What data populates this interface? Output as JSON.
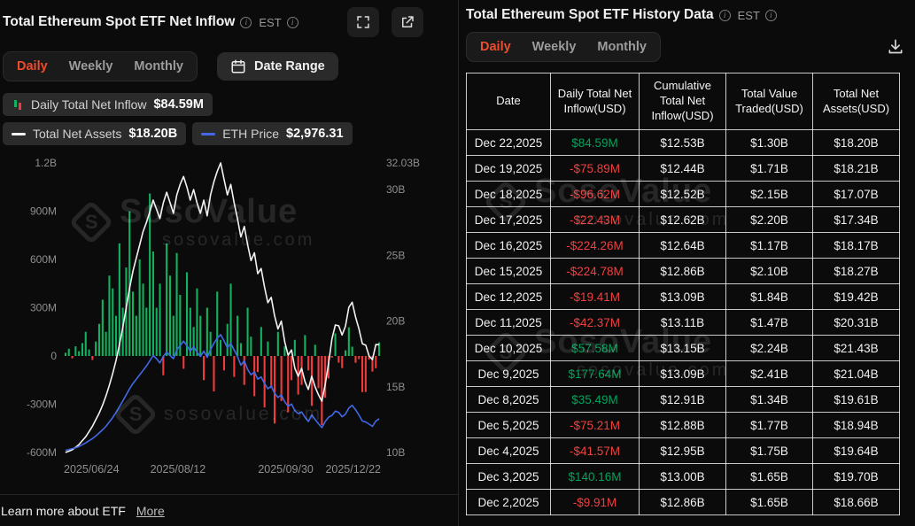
{
  "colors": {
    "accent": "#ee4d2d",
    "bar_green": "#12b15f",
    "bar_red": "#ef3b3b",
    "table_green": "#00a35c",
    "table_red": "#ef4040",
    "eth_line": "#4169e8",
    "assets_line": "#f2f2f2",
    "axis_text": "#8f8f8f"
  },
  "icons": {
    "info": "circled-i",
    "fullscreen": "expand-corners",
    "share": "arrow-out-of-box",
    "calendar": "calendar",
    "download": "arrow-down-to-tray",
    "inflow_legend": "green-red-mini-bars",
    "assets_legend": "white-line",
    "eth_legend": "blue-line"
  },
  "left_panel": {
    "title": "Total Ethereum Spot ETF Net Inflow",
    "est_label": "EST",
    "tabs": [
      {
        "label": "Daily",
        "active": true
      },
      {
        "label": "Weekly",
        "active": false
      },
      {
        "label": "Monthly",
        "active": false
      }
    ],
    "date_range_label": "Date Range",
    "legend": [
      {
        "label": "Daily Total Net Inflow",
        "value": "$84.59M"
      },
      {
        "label": "Total Net Assets",
        "value": "$18.20B"
      },
      {
        "label": "ETH Price",
        "value": "$2,976.31"
      }
    ],
    "footer": {
      "text": "Learn more about ETF",
      "link": "More"
    }
  },
  "right_panel": {
    "title": "Total Ethereum Spot ETF History Data",
    "est_label": "EST",
    "tabs": [
      {
        "label": "Daily",
        "active": true
      },
      {
        "label": "Weekly",
        "active": false
      },
      {
        "label": "Monthly",
        "active": false
      }
    ],
    "table": {
      "headers": [
        "Date",
        "Daily Total Net Inflow(USD)",
        "Cumulative Total Net Inflow(USD)",
        "Total Value Traded(USD)",
        "Total Net Assets(USD)"
      ],
      "rows": [
        [
          "Dec 22,2025",
          "$84.59M",
          "$12.53B",
          "$1.30B",
          "$18.20B"
        ],
        [
          "Dec 19,2025",
          "-$75.89M",
          "$12.44B",
          "$1.71B",
          "$18.21B"
        ],
        [
          "Dec 18,2025",
          "-$96.62M",
          "$12.52B",
          "$2.15B",
          "$17.07B"
        ],
        [
          "Dec 17,2025",
          "-$22.43M",
          "$12.62B",
          "$2.20B",
          "$17.34B"
        ],
        [
          "Dec 16,2025",
          "-$224.26M",
          "$12.64B",
          "$1.17B",
          "$18.17B"
        ],
        [
          "Dec 15,2025",
          "-$224.78M",
          "$12.86B",
          "$2.10B",
          "$18.27B"
        ],
        [
          "Dec 12,2025",
          "-$19.41M",
          "$13.09B",
          "$1.84B",
          "$19.42B"
        ],
        [
          "Dec 11,2025",
          "-$42.37M",
          "$13.11B",
          "$1.47B",
          "$20.31B"
        ],
        [
          "Dec 10,2025",
          "$57.58M",
          "$13.15B",
          "$2.24B",
          "$21.43B"
        ],
        [
          "Dec 9,2025",
          "$177.64M",
          "$13.09B",
          "$2.41B",
          "$21.04B"
        ],
        [
          "Dec 8,2025",
          "$35.49M",
          "$12.91B",
          "$1.34B",
          "$19.61B"
        ],
        [
          "Dec 5,2025",
          "-$75.21M",
          "$12.88B",
          "$1.77B",
          "$18.94B"
        ],
        [
          "Dec 4,2025",
          "-$41.57M",
          "$12.95B",
          "$1.75B",
          "$19.64B"
        ],
        [
          "Dec 3,2025",
          "$140.16M",
          "$13.00B",
          "$1.65B",
          "$19.70B"
        ],
        [
          "Dec 2,2025",
          "-$9.91M",
          "$12.86B",
          "$1.65B",
          "$18.66B"
        ]
      ]
    }
  },
  "watermark": {
    "brand": "SosoValue",
    "domain": "sosovalue.com",
    "logo": "S"
  },
  "chart_data": {
    "type": "bar",
    "title": "Total Ethereum Spot ETF Net Inflow",
    "legend_position": "top",
    "grid": false,
    "x_axis": {
      "labels": [
        "2025/06/24",
        "2025/08/12",
        "2025/09/30",
        "2025/12/22"
      ],
      "positions": [
        0,
        0.36,
        0.7,
        1
      ]
    },
    "left_axis": {
      "unit": "USD (M = millions, B = billions)",
      "labels": [
        "1.2B",
        "900M",
        "600M",
        "300M",
        "0",
        "-300M",
        "-600M"
      ],
      "values": [
        1200,
        900,
        600,
        300,
        0,
        -300,
        -600
      ],
      "min": -600,
      "max": 1200
    },
    "right_axis": {
      "unit": "USD billions",
      "labels": [
        "32.03B",
        "30B",
        "25B",
        "20B",
        "15B",
        "10B"
      ],
      "values": [
        32.03,
        30,
        25,
        20,
        15,
        10
      ],
      "min": 10,
      "max": 32.03
    },
    "series": [
      {
        "name": "Daily Total Net Inflow",
        "type": "bar",
        "unit": "USD millions",
        "current": "$84.59M",
        "values": [
          20,
          45,
          -15,
          60,
          30,
          80,
          150,
          40,
          -25,
          90,
          200,
          350,
          150,
          500,
          420,
          250,
          700,
          300,
          550,
          900,
          400,
          250,
          600,
          450,
          300,
          1010,
          650,
          300,
          450,
          -120,
          700,
          500,
          250,
          640,
          380,
          -80,
          520,
          300,
          180,
          420,
          250,
          -150,
          300,
          150,
          -220,
          400,
          100,
          -90,
          200,
          450,
          -130,
          250,
          80,
          -180,
          300,
          120,
          -250,
          -100,
          180,
          -320,
          90,
          -200,
          -420,
          150,
          -280,
          60,
          -350,
          -150,
          100,
          -240,
          -180,
          130,
          -90,
          -310,
          70,
          -200,
          -430,
          -260,
          -140,
          -9.91,
          140.16,
          -41.57,
          -75.21,
          35.49,
          177.64,
          57.58,
          -42.37,
          -19.41,
          -224.78,
          -224.26,
          -22.43,
          -96.62,
          -75.89,
          84.59
        ]
      },
      {
        "name": "Total Net Assets",
        "type": "line",
        "unit": "USD billions",
        "current": "$18.20B",
        "values": [
          10.0,
          10.1,
          10.2,
          10.4,
          10.6,
          10.9,
          11.2,
          11.6,
          12.0,
          12.5,
          13.0,
          13.6,
          14.3,
          15.1,
          16.0,
          17.0,
          18.2,
          19.5,
          21.0,
          22.5,
          23.8,
          24.8,
          25.8,
          26.8,
          27.5,
          28.3,
          29.2,
          28.5,
          27.8,
          29.0,
          29.8,
          29.0,
          28.2,
          29.6,
          30.4,
          31.0,
          30.2,
          29.2,
          30.0,
          29.0,
          28.2,
          29.2,
          28.0,
          29.6,
          30.6,
          31.4,
          32.03,
          30.8,
          29.6,
          30.4,
          29.0,
          27.8,
          26.4,
          27.2,
          25.8,
          24.6,
          25.2,
          23.6,
          24.0,
          22.6,
          21.4,
          21.8,
          20.4,
          19.4,
          20.0,
          18.4,
          17.4,
          17.8,
          16.4,
          15.8,
          16.4,
          15.4,
          14.8,
          15.8,
          15.0,
          14.4,
          13.9,
          15.2,
          16.8,
          18.66,
          19.7,
          19.64,
          18.94,
          19.61,
          21.04,
          21.43,
          20.31,
          19.42,
          18.27,
          18.17,
          17.34,
          17.07,
          18.21,
          18.2
        ]
      },
      {
        "name": "ETH Price",
        "type": "line",
        "unit": "USD",
        "current": "$2,976.31",
        "values": [
          2250,
          2270,
          2290,
          2310,
          2340,
          2380,
          2420,
          2470,
          2520,
          2580,
          2650,
          2720,
          2800,
          2900,
          3000,
          3120,
          3250,
          3380,
          3520,
          3660,
          3780,
          3880,
          3980,
          4080,
          4180,
          4300,
          4420,
          4350,
          4250,
          4400,
          4500,
          4420,
          4350,
          4550,
          4650,
          4750,
          4650,
          4520,
          4620,
          4500,
          4400,
          4520,
          4380,
          4560,
          4700,
          4820,
          4900,
          4760,
          4600,
          4700,
          4550,
          4400,
          4200,
          4300,
          4100,
          3980,
          4050,
          3880,
          3930,
          3780,
          3660,
          3720,
          3560,
          3460,
          3520,
          3360,
          3260,
          3310,
          3160,
          3090,
          3130,
          3010,
          2910,
          3060,
          2960,
          2860,
          2770,
          2910,
          3010,
          3050,
          3150,
          3120,
          3020,
          3080,
          3220,
          3280,
          3180,
          3060,
          2920,
          2900,
          2850,
          2800,
          2920,
          2976.31
        ]
      }
    ]
  }
}
